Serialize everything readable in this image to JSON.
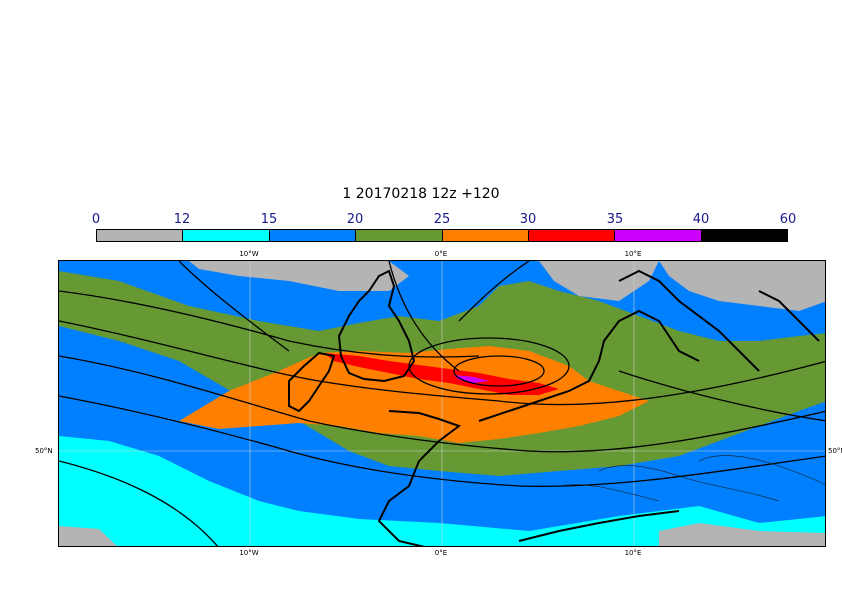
{
  "title": "1 20170218 12z +120",
  "legend": {
    "ticks": [
      "0",
      "12",
      "15",
      "20",
      "25",
      "30",
      "35",
      "40",
      "60"
    ],
    "bins": [
      {
        "from": "0",
        "to": "12",
        "color": "#b4b4b4"
      },
      {
        "from": "12",
        "to": "15",
        "color": "#00ffff"
      },
      {
        "from": "15",
        "to": "20",
        "color": "#0080ff"
      },
      {
        "from": "20",
        "to": "25",
        "color": "#669933"
      },
      {
        "from": "25",
        "to": "30",
        "color": "#ff8000"
      },
      {
        "from": "30",
        "to": "35",
        "color": "#ff0000"
      },
      {
        "from": "35",
        "to": "40",
        "color": "#cc00ff"
      },
      {
        "from": "40",
        "to": "60",
        "color": "#000000"
      }
    ]
  },
  "map": {
    "lon_labels": [
      "10°W",
      "0°E",
      "10°E"
    ],
    "lat_labels": [
      "50°N"
    ],
    "lon_range": [
      -20,
      20
    ],
    "lat_range": [
      40,
      65
    ],
    "gridlines": true
  }
}
